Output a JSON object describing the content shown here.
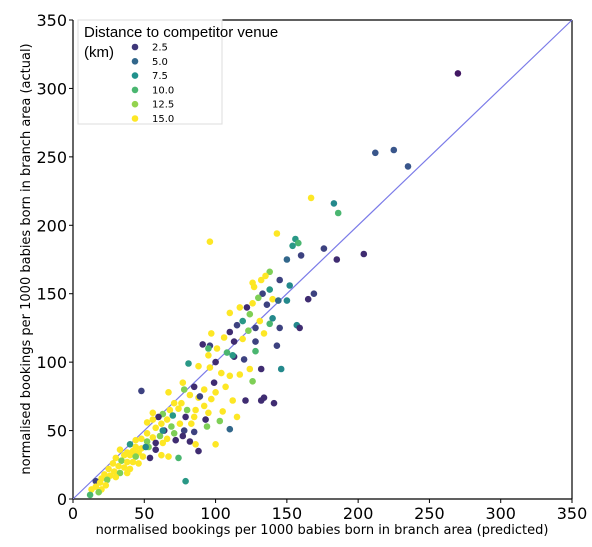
{
  "chart_data": {
    "type": "scatter",
    "xlabel": "normalised bookings per 1000 babies born in branch area (predicted)",
    "ylabel": "normalised bookings per 1000 babies born in branch area (actual)",
    "xlim": [
      0,
      350
    ],
    "ylim": [
      0,
      350
    ],
    "xticks": [
      "0",
      "50",
      "100",
      "150",
      "200",
      "250",
      "300",
      "350"
    ],
    "yticks": [
      "0",
      "50",
      "100",
      "150",
      "200",
      "250",
      "300",
      "350"
    ],
    "grid": false,
    "legend": {
      "title_line1": "Distance to competitor venue",
      "title_line2": "(km)",
      "placement": "top-left",
      "items": [
        {
          "label": "2.5",
          "value": 2.5
        },
        {
          "label": "5.0",
          "value": 5.0
        },
        {
          "label": "7.5",
          "value": 7.5
        },
        {
          "label": "10.0",
          "value": 10.0
        },
        {
          "label": "12.5",
          "value": 12.5
        },
        {
          "label": "15.0",
          "value": 15.0
        }
      ]
    },
    "reference_line": {
      "from": [
        0,
        0
      ],
      "to": [
        350,
        350
      ],
      "color": "#7b7be8"
    },
    "colormap": "viridis",
    "color_range": [
      0,
      15
    ],
    "points": [
      [
        270,
        311,
        1
      ],
      [
        225,
        255,
        4
      ],
      [
        212,
        253,
        4
      ],
      [
        235,
        243,
        4
      ],
      [
        183,
        216,
        7
      ],
      [
        186,
        209,
        10
      ],
      [
        167,
        220,
        15
      ],
      [
        156,
        190,
        8
      ],
      [
        158,
        187,
        10
      ],
      [
        154,
        185,
        8
      ],
      [
        160,
        178,
        3
      ],
      [
        176,
        183,
        3
      ],
      [
        204,
        179,
        2
      ],
      [
        185,
        175,
        2
      ],
      [
        150,
        175,
        5
      ],
      [
        143,
        194,
        15
      ],
      [
        96,
        188,
        15
      ],
      [
        138,
        166,
        12
      ],
      [
        135,
        163,
        15
      ],
      [
        132,
        160,
        15
      ],
      [
        145,
        160,
        3
      ],
      [
        126,
        158,
        15
      ],
      [
        138,
        153,
        8
      ],
      [
        140,
        146,
        15
      ],
      [
        152,
        156,
        7
      ],
      [
        169,
        150,
        3
      ],
      [
        165,
        146,
        2
      ],
      [
        150,
        145,
        7
      ],
      [
        144,
        145,
        5
      ],
      [
        127,
        155,
        15
      ],
      [
        133,
        150,
        3
      ],
      [
        130,
        147,
        12
      ],
      [
        126,
        143,
        15
      ],
      [
        122,
        140,
        2
      ],
      [
        136,
        142,
        3
      ],
      [
        117,
        140,
        15
      ],
      [
        110,
        136,
        15
      ],
      [
        124,
        135,
        12
      ],
      [
        140,
        132,
        7
      ],
      [
        131,
        130,
        15
      ],
      [
        119,
        130,
        8
      ],
      [
        138,
        128,
        10
      ],
      [
        115,
        127,
        3
      ],
      [
        128,
        125,
        3
      ],
      [
        123,
        123,
        12
      ],
      [
        110,
        122,
        2
      ],
      [
        134,
        121,
        15
      ],
      [
        145,
        125,
        3
      ],
      [
        157,
        127,
        7
      ],
      [
        159,
        125,
        2
      ],
      [
        97,
        121,
        15
      ],
      [
        106,
        118,
        15
      ],
      [
        91,
        113,
        2
      ],
      [
        96,
        112,
        3
      ],
      [
        119,
        117,
        15
      ],
      [
        113,
        115,
        2
      ],
      [
        128,
        115,
        3
      ],
      [
        101,
        110,
        15
      ],
      [
        108,
        107,
        10
      ],
      [
        95,
        105,
        15
      ],
      [
        100,
        100,
        2
      ],
      [
        113,
        104,
        2
      ],
      [
        128,
        108,
        10
      ],
      [
        143,
        112,
        3
      ],
      [
        112,
        105,
        8
      ],
      [
        120,
        102,
        3
      ],
      [
        81,
        99,
        8
      ],
      [
        88,
        97,
        15
      ],
      [
        96,
        96,
        15
      ],
      [
        104,
        92,
        15
      ],
      [
        117,
        91,
        15
      ],
      [
        124,
        95,
        15
      ],
      [
        110,
        90,
        15
      ],
      [
        146,
        95,
        7
      ],
      [
        126,
        86,
        12
      ],
      [
        77,
        85,
        15
      ],
      [
        85,
        82,
        2
      ],
      [
        78,
        80,
        12
      ],
      [
        92,
        80,
        15
      ],
      [
        100,
        78,
        15
      ],
      [
        67,
        78,
        15
      ],
      [
        48,
        79,
        3
      ],
      [
        82,
        76,
        15
      ],
      [
        88,
        74,
        15
      ],
      [
        97,
        73,
        15
      ],
      [
        134,
        74,
        2
      ],
      [
        112,
        72,
        15
      ],
      [
        121,
        72,
        2
      ],
      [
        71,
        70,
        15
      ],
      [
        76,
        70,
        15
      ],
      [
        92,
        68,
        15
      ],
      [
        68,
        65,
        15
      ],
      [
        74,
        66,
        15
      ],
      [
        80,
        65,
        12
      ],
      [
        86,
        65,
        15
      ],
      [
        63,
        62,
        12
      ],
      [
        70,
        61,
        8
      ],
      [
        95,
        63,
        15
      ],
      [
        105,
        64,
        15
      ],
      [
        60,
        60,
        2
      ],
      [
        66,
        58,
        15
      ],
      [
        79,
        60,
        2
      ],
      [
        85,
        60,
        15
      ],
      [
        93,
        58,
        2
      ],
      [
        56,
        58,
        15
      ],
      [
        52,
        56,
        15
      ],
      [
        62,
        55,
        15
      ],
      [
        69,
        53,
        12
      ],
      [
        75,
        55,
        15
      ],
      [
        83,
        55,
        15
      ],
      [
        94,
        53,
        12
      ],
      [
        58,
        52,
        15
      ],
      [
        64,
        50,
        2
      ],
      [
        71,
        48,
        12
      ],
      [
        78,
        50,
        3
      ],
      [
        110,
        51,
        5
      ],
      [
        52,
        48,
        15
      ],
      [
        56,
        45,
        15
      ],
      [
        61,
        46,
        12
      ],
      [
        66,
        44,
        15
      ],
      [
        72,
        43,
        2
      ],
      [
        77,
        46,
        2
      ],
      [
        48,
        44,
        15
      ],
      [
        44,
        43,
        15
      ],
      [
        52,
        42,
        12
      ],
      [
        58,
        41,
        2
      ],
      [
        63,
        41,
        15
      ],
      [
        82,
        42,
        2
      ],
      [
        100,
        40,
        15
      ],
      [
        86,
        40,
        15
      ],
      [
        40,
        40,
        8
      ],
      [
        44,
        38,
        15
      ],
      [
        48,
        37,
        15
      ],
      [
        53,
        38,
        12
      ],
      [
        58,
        36,
        2
      ],
      [
        42,
        35,
        15
      ],
      [
        46,
        34,
        15
      ],
      [
        38,
        34,
        15
      ],
      [
        33,
        36,
        15
      ],
      [
        36,
        32,
        15
      ],
      [
        40,
        32,
        15
      ],
      [
        44,
        31,
        12
      ],
      [
        49,
        31,
        15
      ],
      [
        54,
        30,
        2
      ],
      [
        62,
        32,
        15
      ],
      [
        67,
        31,
        15
      ],
      [
        74,
        30,
        10
      ],
      [
        88,
        35,
        2
      ],
      [
        30,
        30,
        15
      ],
      [
        34,
        28,
        12
      ],
      [
        38,
        27,
        15
      ],
      [
        42,
        27,
        15
      ],
      [
        46,
        26,
        15
      ],
      [
        28,
        26,
        15
      ],
      [
        32,
        24,
        15
      ],
      [
        36,
        23,
        15
      ],
      [
        40,
        22,
        15
      ],
      [
        25,
        22,
        15
      ],
      [
        29,
        20,
        15
      ],
      [
        33,
        19,
        12
      ],
      [
        38,
        19,
        15
      ],
      [
        22,
        18,
        15
      ],
      [
        26,
        17,
        15
      ],
      [
        30,
        16,
        15
      ],
      [
        20,
        15,
        15
      ],
      [
        24,
        14,
        12
      ],
      [
        16,
        13,
        3
      ],
      [
        19,
        12,
        15
      ],
      [
        23,
        10,
        15
      ],
      [
        16,
        9,
        15
      ],
      [
        20,
        7,
        15
      ],
      [
        13,
        7,
        15
      ],
      [
        18,
        5,
        12
      ],
      [
        12,
        3,
        10
      ],
      [
        79,
        13,
        8
      ],
      [
        51,
        38,
        7
      ],
      [
        63,
        50,
        7
      ],
      [
        89,
        75,
        3
      ],
      [
        99,
        85,
        2
      ],
      [
        141,
        70,
        2
      ],
      [
        132,
        72,
        2
      ],
      [
        85,
        49,
        3
      ],
      [
        103,
        57,
        12
      ],
      [
        56,
        63,
        15
      ],
      [
        95,
        110,
        10
      ],
      [
        107,
        82,
        15
      ],
      [
        115,
        60,
        15
      ],
      [
        132,
        95,
        2
      ]
    ]
  }
}
